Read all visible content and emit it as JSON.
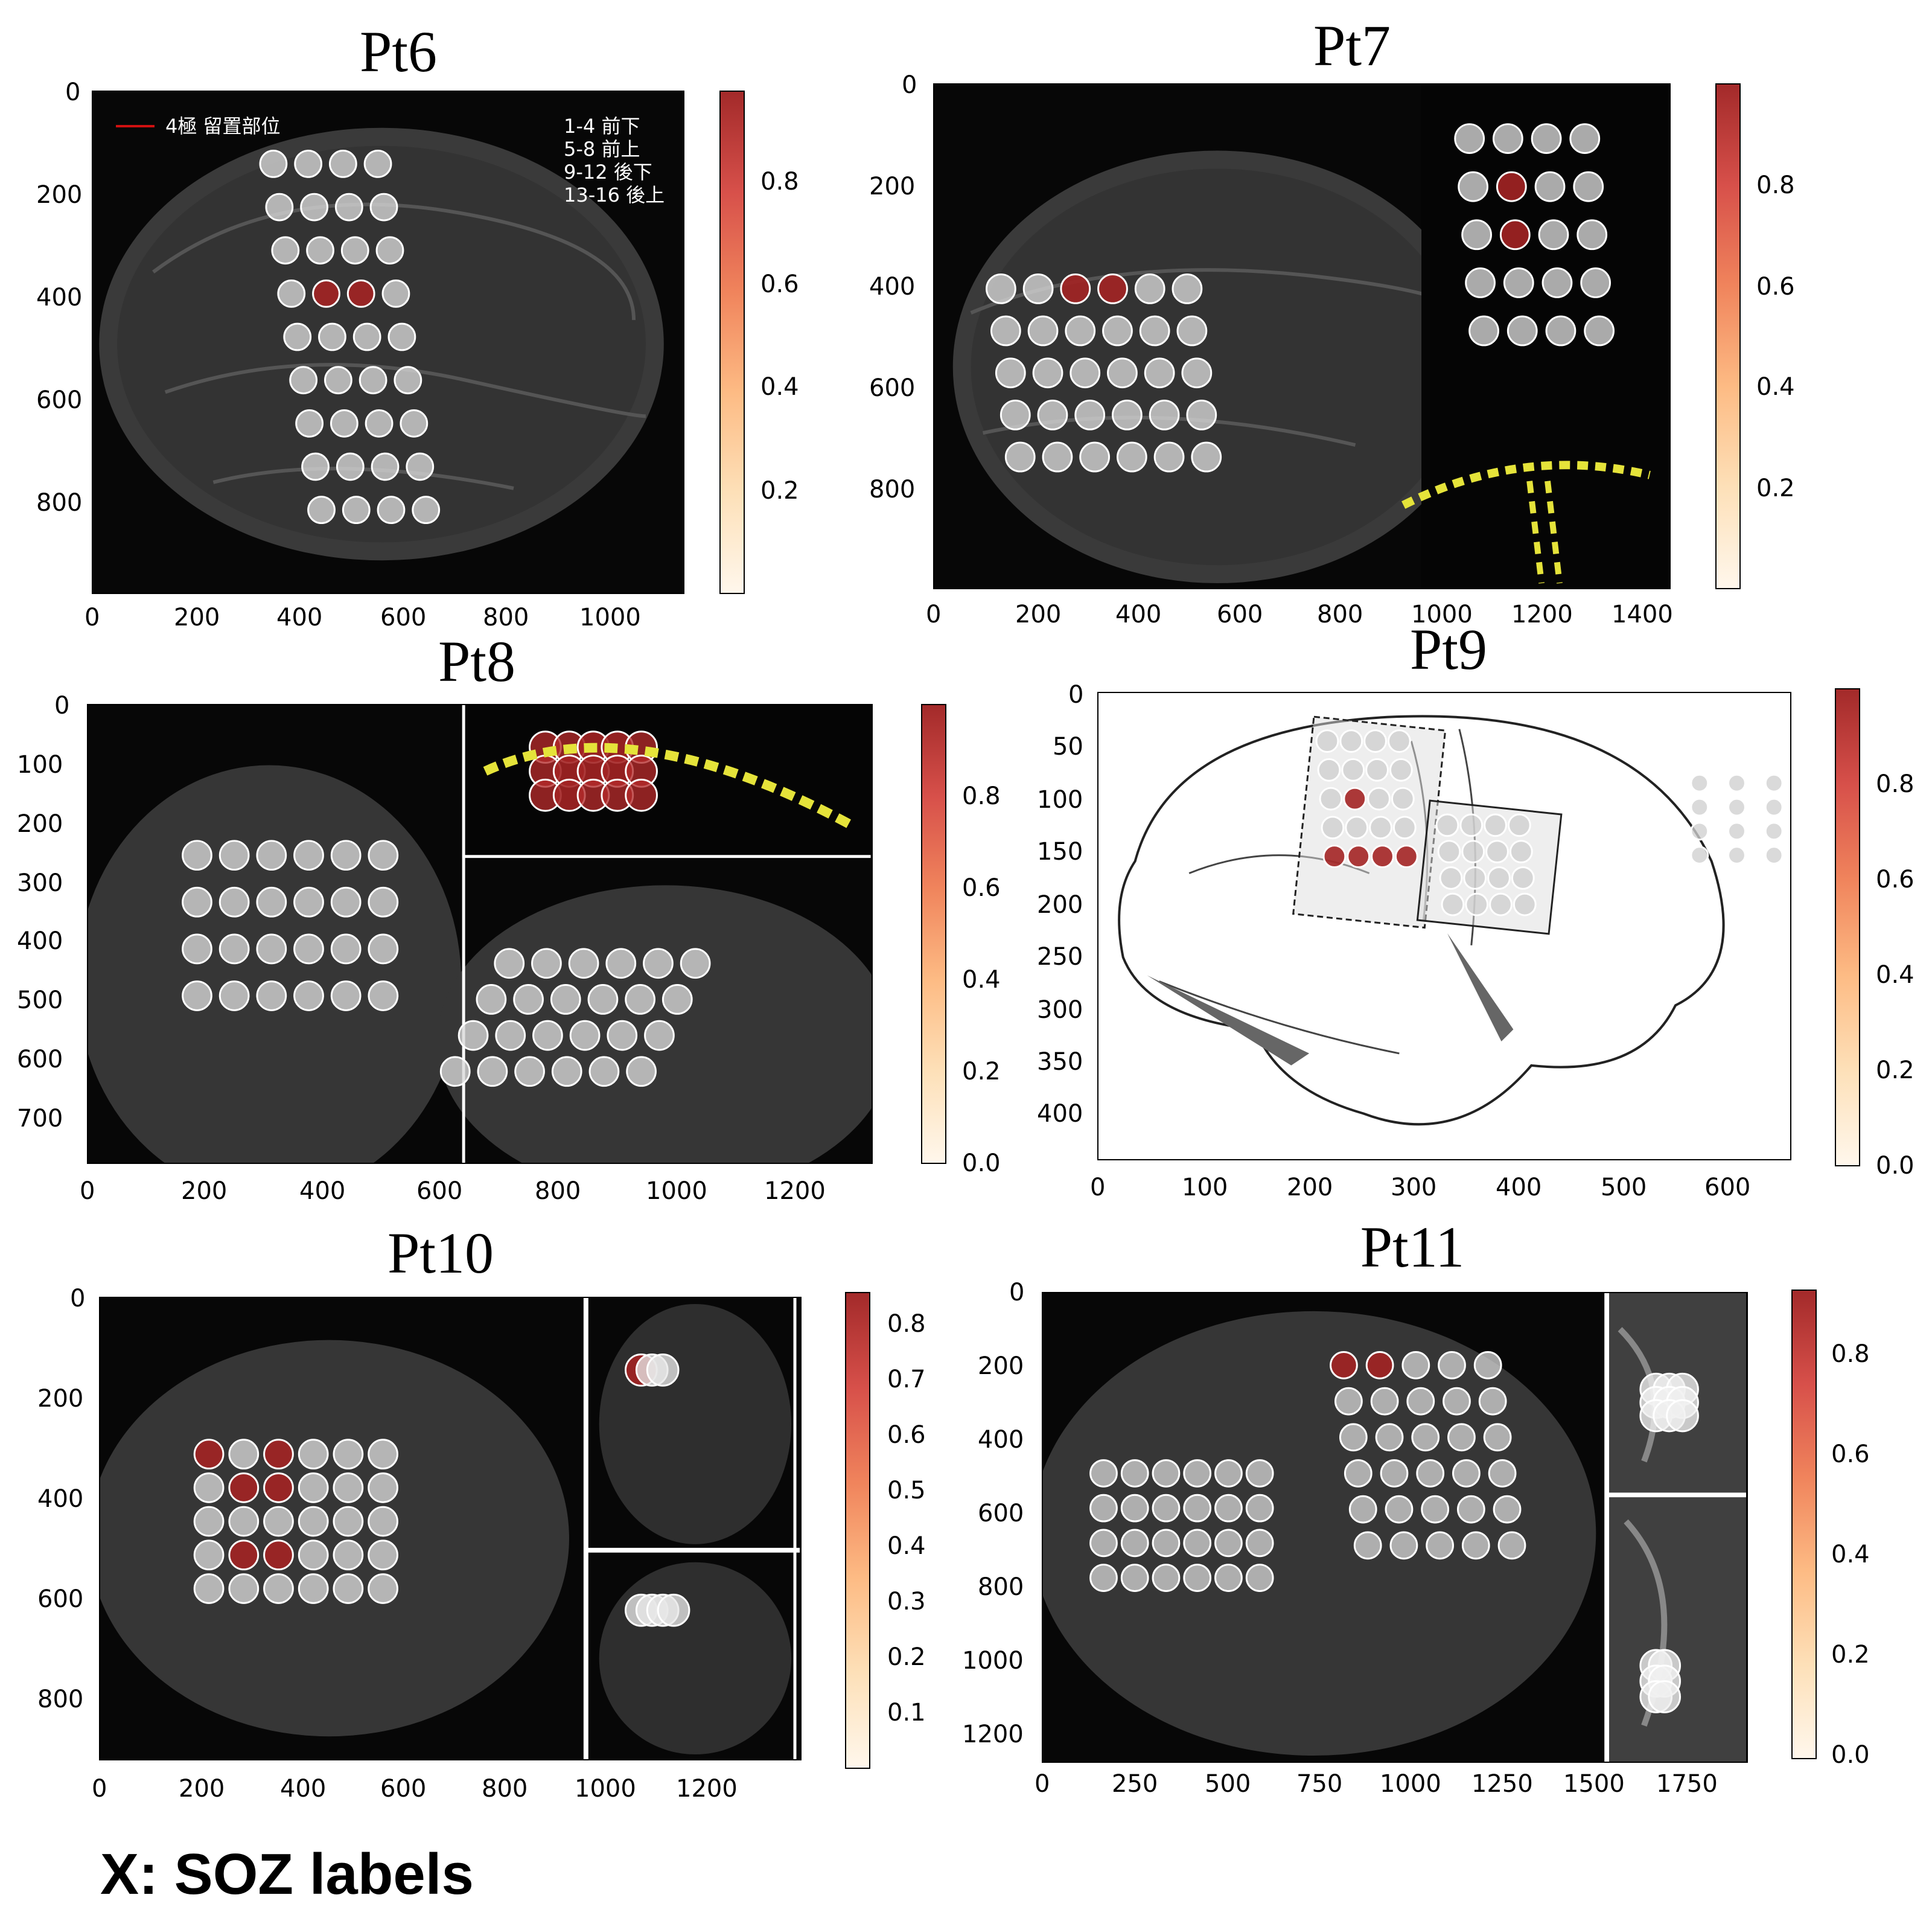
{
  "footer_label": "X: SOZ labels",
  "panels": [
    {
      "id": "pt6",
      "title": "Pt6",
      "xticks": [
        "0",
        "200",
        "400",
        "600",
        "800",
        "1000"
      ],
      "yticks": [
        "0",
        "200",
        "400",
        "600",
        "800"
      ],
      "colorbar_ticks": [
        "0.8",
        "0.6",
        "0.4",
        "0.2"
      ],
      "legend_text": "4極 留置部位",
      "note_lines": [
        "1-4 前下",
        "5-8 前上",
        "9-12 後下",
        "13-16 後上"
      ]
    },
    {
      "id": "pt7",
      "title": "Pt7",
      "xticks": [
        "0",
        "200",
        "400",
        "600",
        "800",
        "1000",
        "1200",
        "1400"
      ],
      "yticks": [
        "0",
        "200",
        "400",
        "600",
        "800"
      ],
      "colorbar_ticks": [
        "0.8",
        "0.6",
        "0.4",
        "0.2"
      ]
    },
    {
      "id": "pt8",
      "title": "Pt8",
      "xticks": [
        "0",
        "200",
        "400",
        "600",
        "800",
        "1000",
        "1200"
      ],
      "yticks": [
        "0",
        "100",
        "200",
        "300",
        "400",
        "500",
        "600",
        "700"
      ],
      "colorbar_ticks": [
        "0.8",
        "0.6",
        "0.4",
        "0.2",
        "0.0"
      ]
    },
    {
      "id": "pt9",
      "title": "Pt9",
      "xticks": [
        "0",
        "100",
        "200",
        "300",
        "400",
        "500",
        "600"
      ],
      "yticks": [
        "0",
        "50",
        "100",
        "150",
        "200",
        "250",
        "300",
        "350",
        "400"
      ],
      "colorbar_ticks": [
        "0.8",
        "0.6",
        "0.4",
        "0.2",
        "0.0"
      ]
    },
    {
      "id": "pt10",
      "title": "Pt10",
      "xticks": [
        "0",
        "200",
        "400",
        "600",
        "800",
        "1000",
        "1200"
      ],
      "yticks": [
        "0",
        "200",
        "400",
        "600",
        "800"
      ],
      "colorbar_ticks": [
        "0.8",
        "0.7",
        "0.6",
        "0.5",
        "0.4",
        "0.3",
        "0.2",
        "0.1"
      ]
    },
    {
      "id": "pt11",
      "title": "Pt11",
      "xticks": [
        "0",
        "250",
        "500",
        "750",
        "1000",
        "1250",
        "1500",
        "1750"
      ],
      "yticks": [
        "0",
        "200",
        "400",
        "600",
        "800",
        "1000",
        "1200"
      ],
      "colorbar_ticks": [
        "0.8",
        "0.6",
        "0.4",
        "0.2",
        "0.0"
      ]
    }
  ]
}
